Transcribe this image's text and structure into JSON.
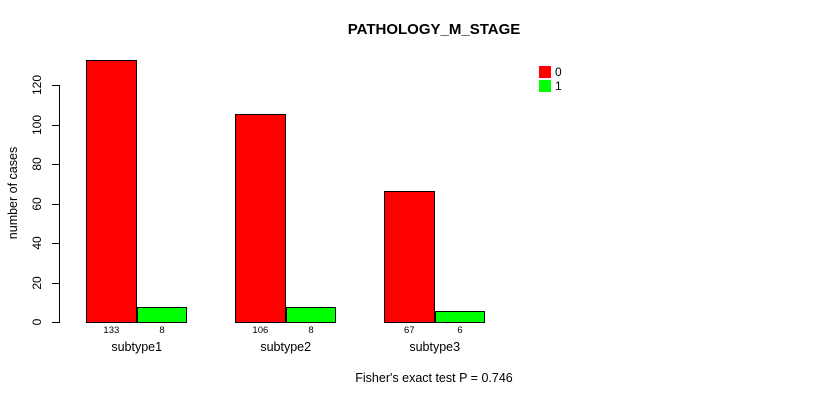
{
  "title": "PATHOLOGY_M_STAGE",
  "y_axis": {
    "label": "number of cases"
  },
  "legend": {
    "items": [
      {
        "label": "0",
        "color": "#ff0000"
      },
      {
        "label": "1",
        "color": "#00ff00"
      }
    ]
  },
  "footer": "Fisher's exact test P = 0.746",
  "chart_data": {
    "type": "bar",
    "title": "PATHOLOGY_M_STAGE",
    "categories": [
      "subtype1",
      "subtype2",
      "subtype3"
    ],
    "series": [
      {
        "name": "0",
        "color": "#ff0000",
        "values": [
          133,
          106,
          67
        ]
      },
      {
        "name": "1",
        "color": "#00ff00",
        "values": [
          8,
          8,
          6
        ]
      }
    ],
    "bar_value_labels": [
      [
        133,
        8
      ],
      [
        106,
        8
      ],
      [
        67,
        6
      ]
    ],
    "xlabel": "",
    "ylabel": "number of cases",
    "ylim": [
      0,
      120
    ],
    "yticks": [
      0,
      20,
      40,
      60,
      80,
      100,
      120
    ],
    "grid": false,
    "legend_position": "top-right",
    "annotation": "Fisher's exact test P = 0.746"
  }
}
